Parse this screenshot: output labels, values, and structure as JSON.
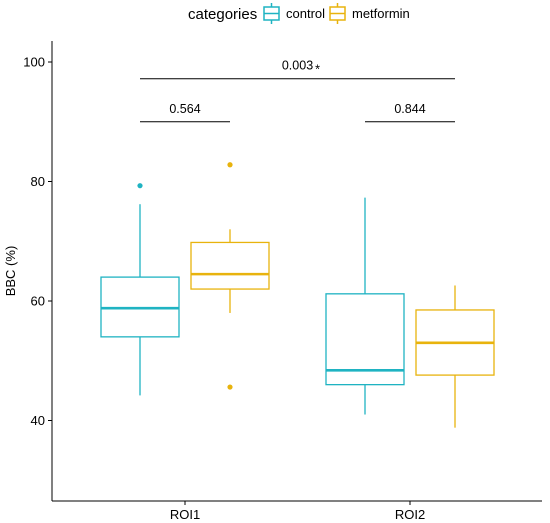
{
  "chart_data": {
    "type": "box",
    "ylabel": "BBC (%)",
    "xlabel": "",
    "ylim": [
      27,
      104
    ],
    "yticks": [
      40,
      60,
      80,
      100
    ],
    "categories": [
      "ROI1",
      "ROI2"
    ],
    "legend": {
      "title": "categories",
      "position": "top",
      "entries": [
        "control",
        "metformin"
      ]
    },
    "grid": false,
    "series": [
      {
        "name": "control",
        "color": "#1FB3C2",
        "boxes": [
          {
            "category": "ROI1",
            "min": 44.2,
            "q1": 54.0,
            "median": 58.8,
            "q3": 64.0,
            "max": 76.2,
            "outliers": [
              79.3
            ]
          },
          {
            "category": "ROI2",
            "min": 41.0,
            "q1": 46.0,
            "median": 48.4,
            "q3": 61.2,
            "max": 77.3,
            "outliers": []
          }
        ]
      },
      {
        "name": "metformin",
        "color": "#E8B30D",
        "boxes": [
          {
            "category": "ROI1",
            "min": 58.0,
            "q1": 62.0,
            "median": 64.5,
            "q3": 69.8,
            "max": 72.0,
            "outliers": [
              82.8,
              45.6
            ]
          },
          {
            "category": "ROI2",
            "min": 38.8,
            "q1": 47.6,
            "median": 53.0,
            "q3": 58.5,
            "max": 62.6,
            "outliers": []
          }
        ]
      }
    ],
    "annotations": [
      {
        "text": "0.003",
        "mark": "*",
        "y": 97.2,
        "x_from": 0.8,
        "x_to": 2.2
      },
      {
        "text": "0.564",
        "y": 90.0,
        "x_from": 0.8,
        "x_to": 1.2
      },
      {
        "text": "0.844",
        "y": 90.0,
        "x_from": 1.8,
        "x_to": 2.2
      }
    ]
  }
}
